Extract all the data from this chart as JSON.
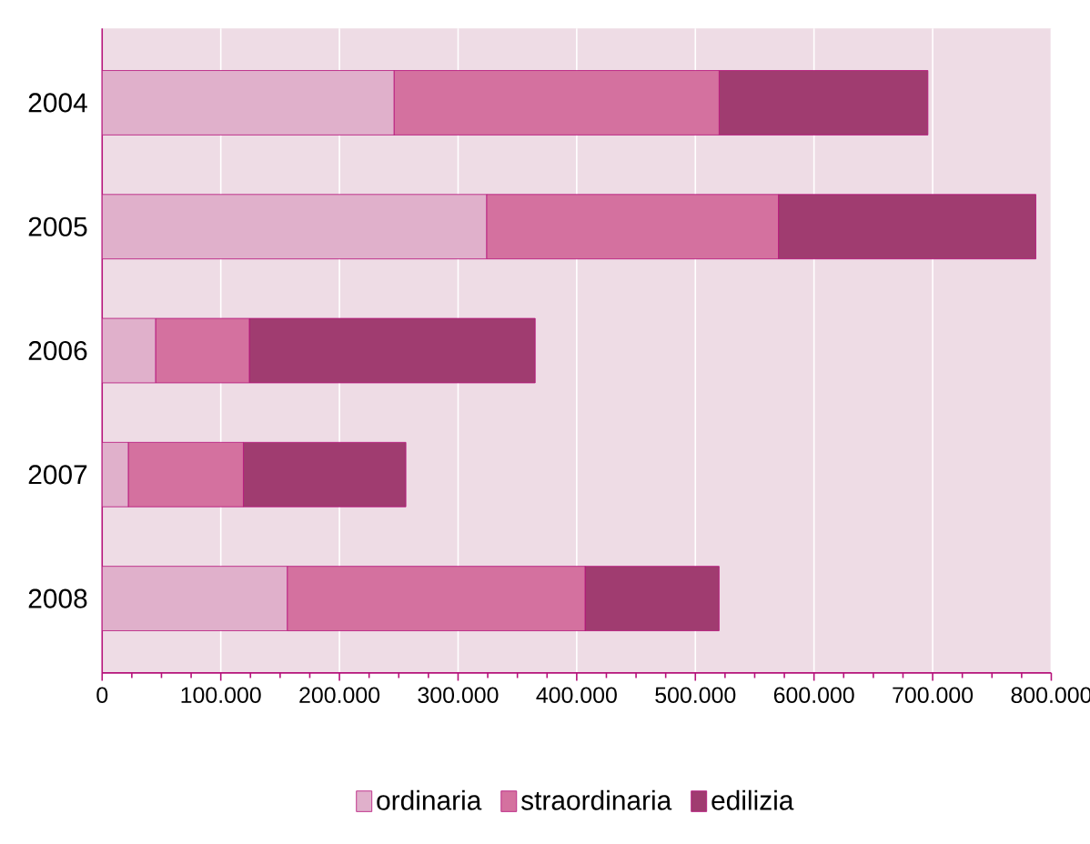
{
  "chart_data": {
    "type": "bar",
    "orientation": "horizontal",
    "stacked": true,
    "categories": [
      "2004",
      "2005",
      "2006",
      "2007",
      "2008"
    ],
    "series": [
      {
        "name": "ordinaria",
        "color": "#e0b0cb",
        "values": [
          246000,
          324000,
          45000,
          22000,
          156000
        ]
      },
      {
        "name": "straordinaria",
        "color": "#d4719f",
        "values": [
          274000,
          246000,
          79000,
          97000,
          251000
        ]
      },
      {
        "name": "edilizia",
        "color": "#a03c70",
        "values": [
          176000,
          217000,
          241000,
          137000,
          113000
        ]
      }
    ],
    "xlim": [
      0,
      800000
    ],
    "xticks": [
      {
        "value": 0,
        "label": "0"
      },
      {
        "value": 100000,
        "label": "100.000"
      },
      {
        "value": 200000,
        "label": "200.000"
      },
      {
        "value": 300000,
        "label": "300.000"
      },
      {
        "value": 400000,
        "label": "400.000"
      },
      {
        "value": 500000,
        "label": "500.000"
      },
      {
        "value": 600000,
        "label": "600.000"
      },
      {
        "value": 700000,
        "label": "700.000"
      },
      {
        "value": 800000,
        "label": "800.000"
      }
    ],
    "grid": "x",
    "legend": "bottom"
  }
}
